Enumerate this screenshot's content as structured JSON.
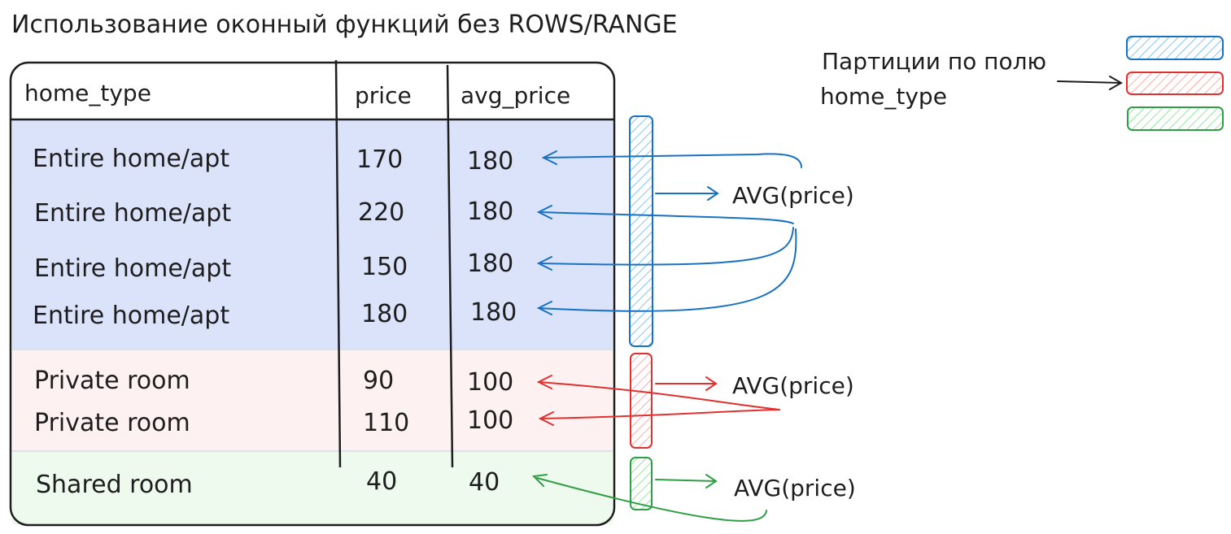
{
  "title": "Использование оконный функций без ROWS/RANGE",
  "table": {
    "columns": [
      "home_type",
      "price",
      "avg_price"
    ],
    "rows": [
      {
        "home_type": "Entire home/apt",
        "price": "170",
        "avg_price": "180"
      },
      {
        "home_type": "Entire home/apt",
        "price": "220",
        "avg_price": "180"
      },
      {
        "home_type": "Entire home/apt",
        "price": "150",
        "avg_price": "180"
      },
      {
        "home_type": "Entire home/apt",
        "price": "180",
        "avg_price": "180"
      },
      {
        "home_type": "Private room",
        "price": "90",
        "avg_price": "100"
      },
      {
        "home_type": "Private room",
        "price": "110",
        "avg_price": "100"
      },
      {
        "home_type": "Shared room",
        "price": "40",
        "avg_price": "40"
      }
    ]
  },
  "partitions": [
    {
      "name": "Entire home/apt",
      "function_label": "AVG(price)",
      "fill": "#dbe3fb",
      "stroke": "#1971c2"
    },
    {
      "name": "Private room",
      "function_label": "AVG(price)",
      "fill": "#fdf2f1",
      "stroke": "#e03131"
    },
    {
      "name": "Shared room",
      "function_label": "AVG(price)",
      "fill": "#eefaee",
      "stroke": "#2f9e44"
    }
  ],
  "legend": {
    "label_line1": "Партиции по полю",
    "label_line2": "home_type"
  },
  "colors": {
    "ink": "#1e1e1e",
    "blue": "#1971c2",
    "red": "#e03131",
    "green": "#2f9e44"
  }
}
